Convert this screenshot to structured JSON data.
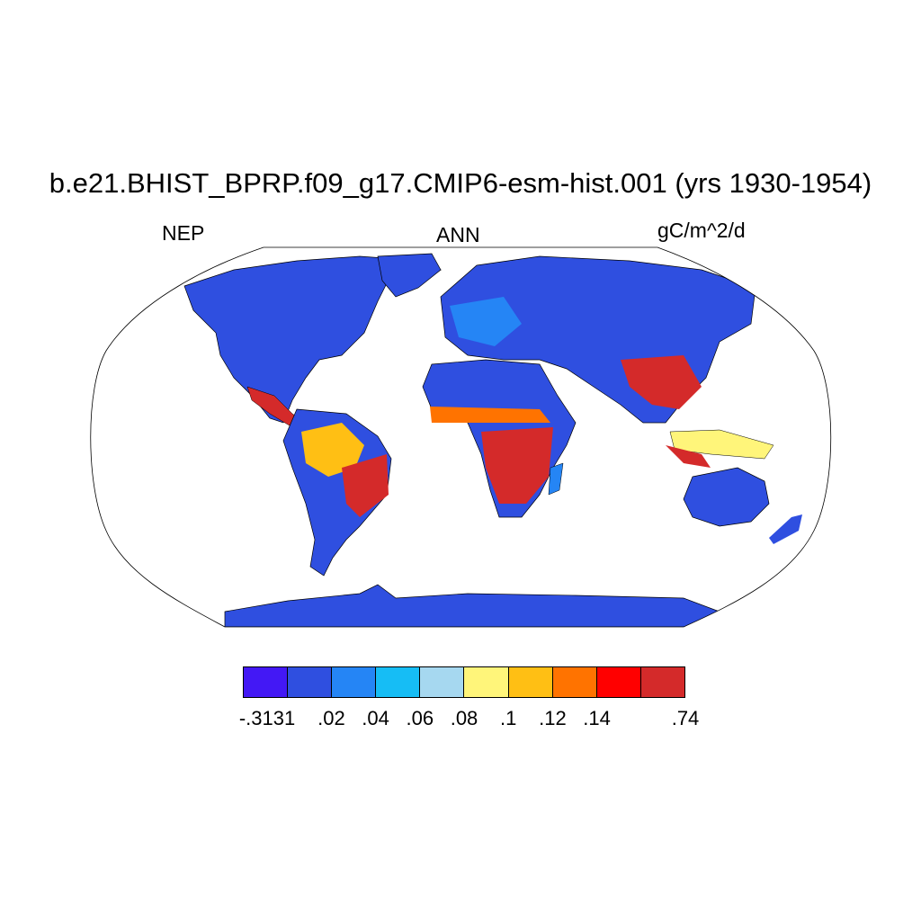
{
  "title": "b.e21.BHIST_BPRP.f09_g17.CMIP6-esm-hist.001 (yrs 1930-1954)",
  "left_label": "NEP",
  "center_label": "ANN",
  "right_label": "gC/m^2/d",
  "colorbar": {
    "colors": [
      "#4318f5",
      "#2f4fe0",
      "#2585f5",
      "#16bdf5",
      "#a6d8f0",
      "#fff57a",
      "#ffbf14",
      "#ff7300",
      "#ff0000",
      "#d42a2a"
    ],
    "labels": [
      "-.3131",
      ".02",
      ".04",
      ".06",
      ".08",
      ".1",
      ".12",
      ".14",
      ".74"
    ]
  },
  "map": {
    "projection": "Robinson",
    "ocean_color": "#ffffff",
    "coastline_color": "#000000"
  }
}
